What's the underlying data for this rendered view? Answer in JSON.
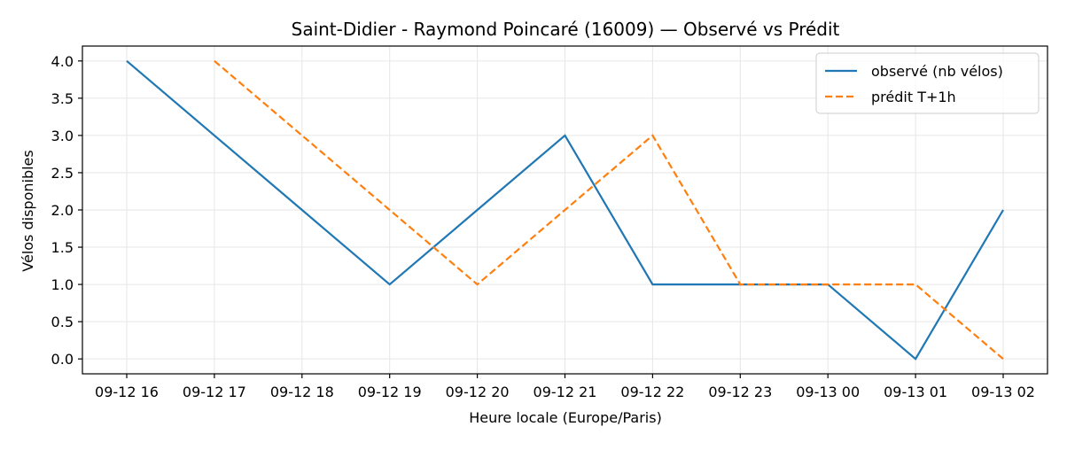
{
  "chart_data": {
    "type": "line",
    "title": "Saint-Didier - Raymond Poincaré (16009) — Observé vs Prédit",
    "xlabel": "Heure locale (Europe/Paris)",
    "ylabel": "Vélos disponibles",
    "categories": [
      "09-12 16",
      "09-12 17",
      "09-12 18",
      "09-12 19",
      "09-12 20",
      "09-12 21",
      "09-12 22",
      "09-12 23",
      "09-13 00",
      "09-13 01",
      "09-13 02"
    ],
    "y_ticks": [
      "0.0",
      "0.5",
      "1.0",
      "1.5",
      "2.0",
      "2.5",
      "3.0",
      "3.5",
      "4.0"
    ],
    "y_tick_values": [
      0,
      0.5,
      1,
      1.5,
      2,
      2.5,
      3,
      3.5,
      4
    ],
    "ylim": [
      -0.2,
      4.2
    ],
    "grid": true,
    "legend_position": "top-right",
    "series": [
      {
        "name": "observé (nb vélos)",
        "color": "#1f77b4",
        "style": "solid",
        "values": [
          4,
          3,
          2,
          1,
          2,
          3,
          1,
          1,
          1,
          0,
          2
        ]
      },
      {
        "name": "prédit T+1h",
        "color": "#ff7f0e",
        "style": "dashed",
        "values": [
          null,
          4,
          3,
          2,
          1,
          2,
          3,
          1,
          1,
          1,
          0
        ]
      }
    ]
  }
}
